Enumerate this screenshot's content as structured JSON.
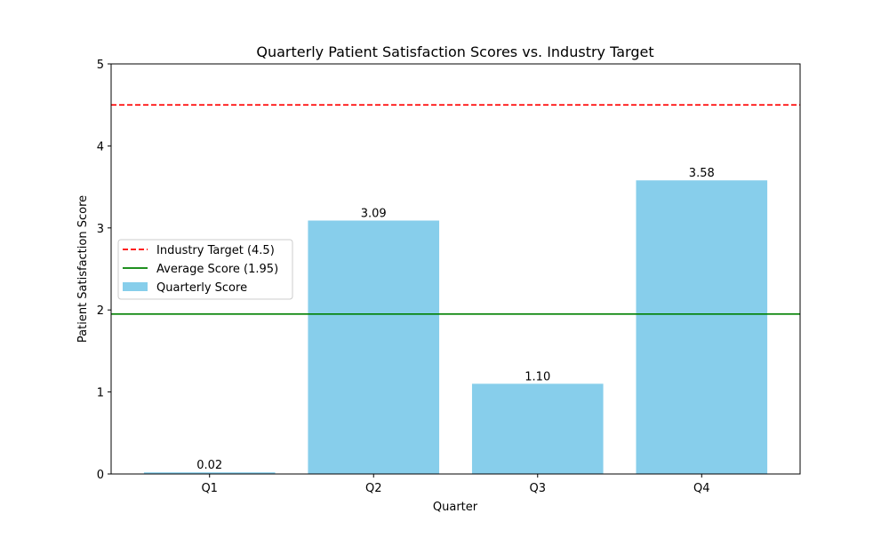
{
  "chart_data": {
    "type": "bar",
    "title": "Quarterly Patient Satisfaction Scores vs. Industry Target",
    "xlabel": "Quarter",
    "ylabel": "Patient Satisfaction Score",
    "categories": [
      "Q1",
      "Q2",
      "Q3",
      "Q4"
    ],
    "series": [
      {
        "name": "Quarterly Score",
        "values": [
          0.02,
          3.09,
          1.1,
          3.58
        ],
        "color": "#87ceeb"
      }
    ],
    "data_labels": [
      "0.02",
      "3.09",
      "1.10",
      "3.58"
    ],
    "reference_lines": [
      {
        "name": "Industry Target (4.5)",
        "value": 4.5,
        "color": "#ff0000",
        "style": "dashed"
      },
      {
        "name": "Average Score (1.95)",
        "value": 1.95,
        "color": "#008000",
        "style": "solid"
      }
    ],
    "ylim": [
      0,
      5
    ],
    "yticks": [
      0,
      1,
      2,
      3,
      4,
      5
    ],
    "grid": false,
    "legend_position": "center-left"
  }
}
